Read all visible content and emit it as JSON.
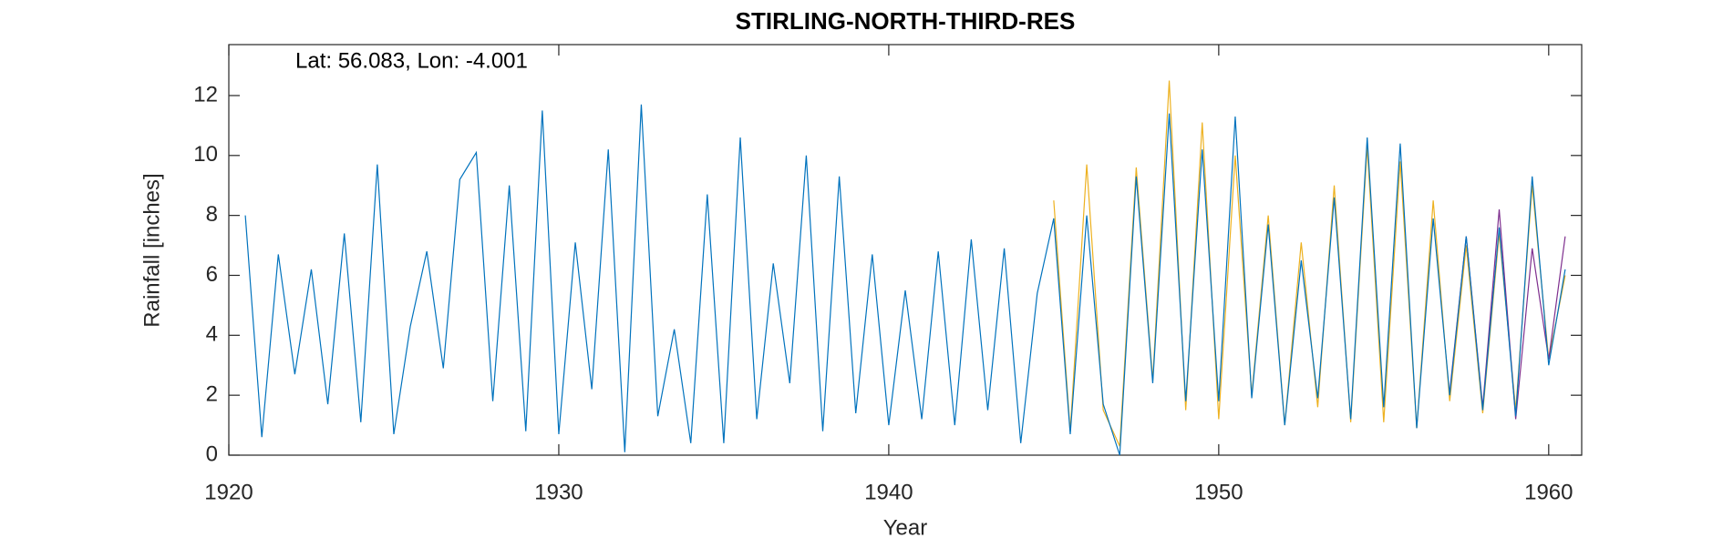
{
  "chart_data": {
    "type": "line",
    "title": "STIRLING-NORTH-THIRD-RES",
    "annotation": "Lat: 56.083, Lon: -4.001",
    "xlabel": "Year",
    "ylabel": "Rainfall [inches]",
    "xlim": [
      1920,
      1961
    ],
    "ylim": [
      0,
      13.7
    ],
    "xticks": [
      1920,
      1930,
      1940,
      1950,
      1960
    ],
    "yticks": [
      0,
      2,
      4,
      6,
      8,
      10,
      12
    ],
    "series": [
      {
        "color": "#EDB120",
        "x": [
          1945,
          1945.5,
          1946,
          1946.5,
          1947,
          1947.5,
          1948,
          1948.5,
          1949,
          1949.5,
          1950,
          1950.5,
          1951,
          1951.5,
          1952,
          1952.5,
          1953,
          1953.5,
          1954,
          1954.5,
          1955,
          1955.5,
          1956,
          1956.5,
          1957,
          1957.5,
          1958,
          1958.5,
          1959,
          1959.5,
          1960,
          1960.5
        ],
        "values": [
          8.5,
          0.8,
          9.7,
          1.5,
          0.3,
          9.6,
          2.5,
          12.5,
          1.5,
          11.1,
          1.2,
          10.0,
          2.0,
          8.0,
          1.0,
          7.1,
          1.6,
          9.0,
          1.1,
          10.3,
          1.1,
          9.8,
          0.9,
          8.5,
          1.8,
          7.0,
          1.4,
          7.4,
          1.5,
          9.0,
          3.2,
          6.0
        ]
      },
      {
        "color": "#7E2F8E",
        "x": [
          1957,
          1957.5,
          1958,
          1958.5,
          1959,
          1959.5,
          1960,
          1960.5
        ],
        "values": [
          2.1,
          7.3,
          1.6,
          8.2,
          1.2,
          6.9,
          3.2,
          7.3
        ]
      },
      {
        "color": "#0072BD",
        "x": [
          1920.5,
          1921,
          1921.5,
          1922,
          1922.5,
          1923,
          1923.5,
          1924,
          1924.5,
          1925,
          1925.5,
          1926,
          1926.5,
          1927,
          1927.5,
          1928,
          1928.5,
          1929,
          1929.5,
          1930,
          1930.5,
          1931,
          1931.5,
          1932,
          1932.5,
          1933,
          1933.5,
          1934,
          1934.5,
          1935,
          1935.5,
          1936,
          1936.5,
          1937,
          1937.5,
          1938,
          1938.5,
          1939,
          1939.5,
          1940,
          1940.5,
          1941,
          1941.5,
          1942,
          1942.5,
          1943,
          1943.5,
          1944,
          1944.5,
          1945,
          1945.5,
          1946,
          1946.5,
          1947,
          1947.5,
          1948,
          1948.5,
          1949,
          1949.5,
          1950,
          1950.5,
          1951,
          1951.5,
          1952,
          1952.5,
          1953,
          1953.5,
          1954,
          1954.5,
          1955,
          1955.5,
          1956,
          1956.5,
          1957,
          1957.5,
          1958,
          1958.5,
          1959,
          1959.5,
          1960,
          1960.5
        ],
        "values": [
          8.0,
          0.6,
          6.7,
          2.7,
          6.2,
          1.7,
          7.4,
          1.1,
          9.7,
          0.7,
          4.3,
          6.8,
          2.9,
          9.2,
          10.1,
          1.8,
          9.0,
          0.8,
          11.5,
          0.7,
          7.1,
          2.2,
          10.2,
          0.1,
          11.7,
          1.3,
          4.2,
          0.4,
          8.7,
          0.4,
          10.6,
          1.2,
          6.4,
          2.4,
          10.0,
          0.8,
          9.3,
          1.4,
          6.7,
          1.0,
          5.5,
          1.2,
          6.8,
          1.0,
          7.2,
          1.5,
          6.9,
          0.4,
          5.4,
          7.9,
          0.7,
          8.0,
          1.7,
          0.0,
          9.3,
          2.4,
          11.4,
          1.8,
          10.2,
          1.8,
          11.3,
          1.9,
          7.7,
          1.0,
          6.5,
          1.9,
          8.6,
          1.2,
          10.6,
          1.6,
          10.4,
          0.9,
          7.9,
          2.0,
          7.3,
          1.5,
          7.6,
          1.3,
          9.3,
          3.0,
          6.2
        ]
      }
    ]
  }
}
